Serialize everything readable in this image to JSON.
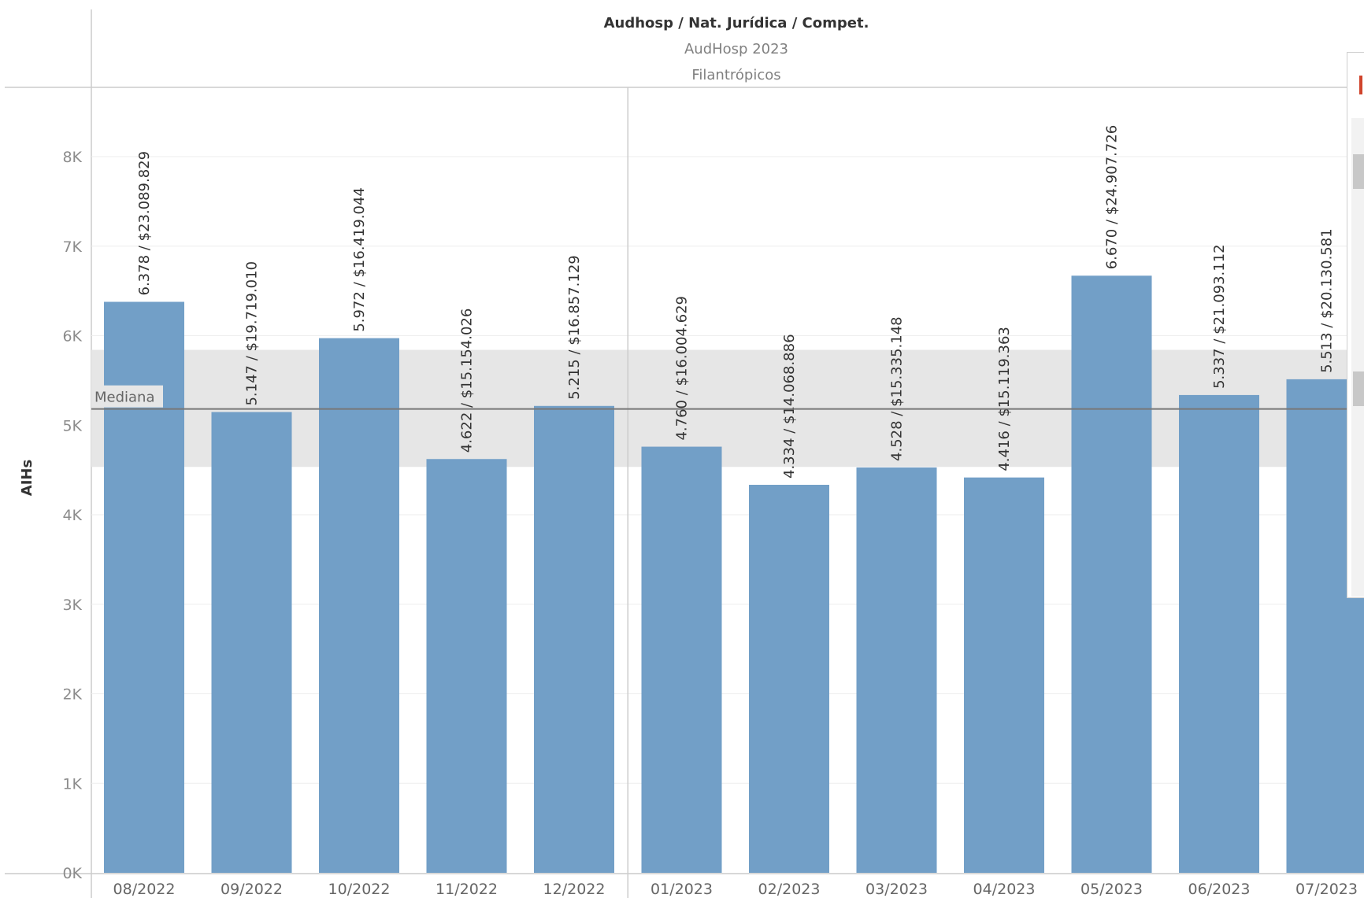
{
  "header": {
    "title": "Audhosp / Nat. Jurídica / Compet.",
    "row2": "AudHosp 2023",
    "row3": "Filantrópicos"
  },
  "colors": {
    "bar": "#729fc7",
    "median_band": "#e6e6e6",
    "median_line": "#777777",
    "gridline": "#eeeeee",
    "axis": "#cccccc"
  },
  "chart_data": {
    "type": "bar",
    "ylabel": "AIHs",
    "ylim": [
      0,
      8500
    ],
    "yticks": [
      0,
      1000,
      2000,
      3000,
      4000,
      5000,
      6000,
      7000,
      8000
    ],
    "ytick_labels": [
      "0K",
      "1K",
      "2K",
      "3K",
      "4K",
      "5K",
      "6K",
      "7K",
      "8K"
    ],
    "grid": true,
    "categories": [
      "08/2022",
      "09/2022",
      "10/2022",
      "11/2022",
      "12/2022",
      "01/2023",
      "02/2023",
      "03/2023",
      "04/2023",
      "05/2023",
      "06/2023",
      "07/2023"
    ],
    "values": [
      6378,
      5147,
      5972,
      4622,
      5215,
      4760,
      4334,
      4528,
      4416,
      6670,
      5337,
      5513
    ],
    "data_labels": [
      "6.378 / $23.089.829",
      "5.147 / $19.719.010",
      "5.972 / $16.419.044",
      "4.622 / $15.154.026",
      "5.215 / $16.857.129",
      "4.760 / $16.004.629",
      "4.334 / $14.068.886",
      "4.528 / $15.335.148",
      "4.416 / $15.119.363",
      "6.670 / $24.907.726",
      "5.337 / $21.093.112",
      "5.513 / $20.130.581"
    ],
    "year_groups": [
      {
        "from": 0,
        "to": 4
      },
      {
        "from": 5,
        "to": 11
      }
    ],
    "reference": {
      "label": "Mediana",
      "value": 5181,
      "band": [
        4534,
        5841
      ]
    }
  }
}
